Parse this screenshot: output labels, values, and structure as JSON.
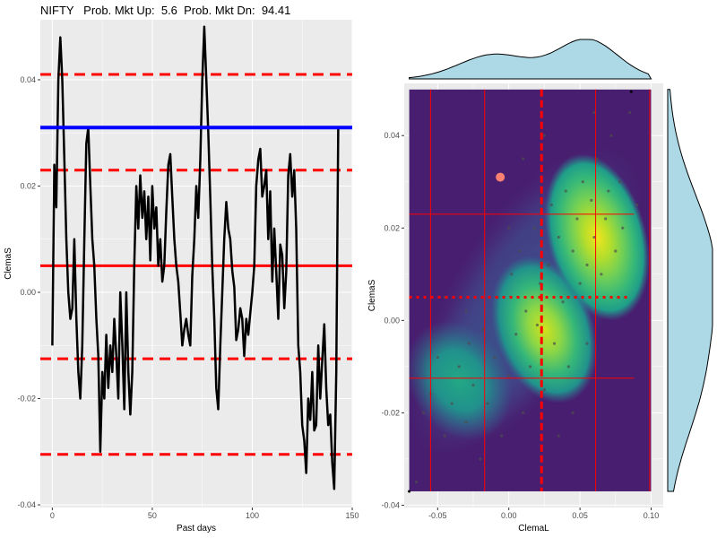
{
  "title": "NIFTY   Prob. Mkt Up:  5.6  Prob. Mkt Dn:  94.41",
  "colors": {
    "panel_bg": "#ebebeb",
    "grid": "#ffffff",
    "line": "#000000",
    "current_level": "#0000ff",
    "reference_lines": "#ff0000",
    "marginal_fill": "#add8e6",
    "current_point": "#fa8072"
  },
  "chart_data": [
    {
      "type": "line",
      "xlabel": "Past days",
      "ylabel": "ClemaS",
      "xlim": [
        -6,
        150
      ],
      "ylim": [
        -0.0405,
        0.0513
      ],
      "x_ticks": [
        0,
        50,
        100,
        150
      ],
      "y_ticks": [
        -0.04,
        -0.02,
        0.0,
        0.02,
        0.04
      ],
      "x_tick_labels": [
        "0",
        "50",
        "100",
        "150"
      ],
      "y_tick_labels": [
        "-0.04",
        "-0.02",
        "0.00",
        "0.02",
        "0.04"
      ],
      "series": [
        {
          "x": [
            0,
            1,
            2,
            3,
            4,
            5,
            6,
            7,
            8,
            9,
            10,
            11,
            12,
            13,
            14,
            15,
            16,
            17,
            18,
            19,
            20,
            21,
            22,
            23,
            24,
            25,
            26,
            27,
            28,
            29,
            30,
            31,
            32,
            33,
            34,
            35,
            36,
            37,
            38,
            39,
            40,
            41,
            42,
            43,
            44,
            45,
            46,
            47,
            48,
            49,
            50,
            51,
            52,
            53,
            54,
            55,
            56,
            57,
            58,
            59,
            60,
            61,
            62,
            63,
            64,
            65,
            66,
            67,
            68,
            69,
            70,
            71,
            72,
            73,
            74,
            75,
            76,
            77,
            78,
            79,
            80,
            81,
            82,
            83,
            84,
            85,
            86,
            87,
            88,
            89,
            90,
            91,
            92,
            93,
            94,
            95,
            96,
            97,
            98,
            99,
            100,
            101,
            102,
            103,
            104,
            105,
            106,
            107,
            108,
            109,
            110,
            111,
            112,
            113,
            114,
            115,
            116,
            117,
            118,
            119,
            120,
            121,
            122,
            123,
            124,
            125,
            126,
            127,
            128,
            129,
            130,
            131,
            132,
            133,
            134,
            135,
            136,
            137,
            138,
            139,
            140,
            141,
            142,
            143
          ],
          "y": [
            -0.01,
            0.024,
            0.016,
            0.04,
            0.048,
            0.04,
            0.025,
            0.01,
            0.0,
            -0.005,
            -0.003,
            0.01,
            -0.005,
            -0.015,
            -0.02,
            -0.01,
            0.01,
            0.028,
            0.031,
            0.02,
            0.01,
            0.005,
            -0.005,
            -0.012,
            -0.03,
            -0.015,
            -0.02,
            -0.008,
            -0.018,
            -0.01,
            -0.015,
            -0.005,
            -0.012,
            -0.02,
            0.0,
            -0.01,
            -0.022,
            0.0,
            -0.015,
            -0.023,
            -0.015,
            0.005,
            0.02,
            0.012,
            0.022,
            0.014,
            0.019,
            0.01,
            0.018,
            0.006,
            0.02,
            0.012,
            0.016,
            0.005,
            0.01,
            0.002,
            0.005,
            0.015,
            0.024,
            0.026,
            0.018,
            0.01,
            0.005,
            0.002,
            -0.004,
            -0.01,
            -0.007,
            -0.005,
            -0.008,
            -0.01,
            0.003,
            0.01,
            0.02,
            0.014,
            0.025,
            0.04,
            0.05,
            0.04,
            0.03,
            0.018,
            0.005,
            -0.005,
            -0.018,
            -0.022,
            -0.01,
            0.0,
            0.01,
            0.017,
            0.012,
            0.01,
            0.004,
            0.001,
            -0.009,
            -0.007,
            -0.003,
            -0.005,
            -0.012,
            -0.005,
            -0.008,
            -0.004,
            0.0,
            0.005,
            0.02,
            0.025,
            0.027,
            0.018,
            0.02,
            0.023,
            0.01,
            0.019,
            0.002,
            0.012,
            0.004,
            -0.005,
            0.009,
            0.007,
            -0.003,
            0.004,
            0.022,
            0.026,
            0.018,
            0.023,
            0.012,
            -0.01,
            -0.015,
            -0.025,
            -0.028,
            -0.034,
            -0.02,
            -0.024,
            -0.015,
            -0.026,
            -0.025,
            -0.01,
            -0.02,
            -0.013,
            -0.006,
            -0.018,
            -0.025,
            -0.023,
            -0.032,
            -0.037,
            -0.015,
            0.031
          ]
        }
      ],
      "h_lines": [
        {
          "y": 0.031,
          "style": "solid",
          "color": "blue"
        },
        {
          "y": 0.041,
          "style": "dashed",
          "color": "red"
        },
        {
          "y": 0.023,
          "style": "dashed",
          "color": "red"
        },
        {
          "y": 0.005,
          "style": "solid",
          "color": "red"
        },
        {
          "y": -0.0125,
          "style": "dashed",
          "color": "red"
        },
        {
          "y": -0.0305,
          "style": "dashed",
          "color": "red"
        }
      ]
    },
    {
      "type": "heatmap",
      "subtype": "2d-density-with-marginals",
      "xlabel": "ClemaL",
      "ylabel": "ClemaS",
      "xlim": [
        -0.0735,
        0.1085
      ],
      "ylim": [
        -0.0405,
        0.0513
      ],
      "x_ticks": [
        -0.05,
        0.0,
        0.05,
        0.1
      ],
      "y_ticks": [
        -0.04,
        -0.02,
        0.0,
        0.02,
        0.04
      ],
      "x_tick_labels": [
        "-0.05",
        "0.00",
        "0.05",
        "0.10"
      ],
      "y_tick_labels": [
        "-0.04",
        "-0.02",
        "0.00",
        "0.02",
        "0.04"
      ],
      "density_range": {
        "x": [
          -0.07,
          0.1
        ],
        "y": [
          -0.037,
          0.05
        ]
      },
      "density_peaks": [
        {
          "x": 0.062,
          "y": 0.018,
          "intensity": 1.0
        },
        {
          "x": 0.025,
          "y": -0.002,
          "intensity": 0.75
        },
        {
          "x": -0.035,
          "y": -0.013,
          "intensity": 0.45
        }
      ],
      "v_lines": [
        {
          "x": 0.023,
          "style": "dashed-thick",
          "color": "red"
        },
        {
          "x": -0.055,
          "style": "solid",
          "color": "red"
        },
        {
          "x": -0.017,
          "style": "solid",
          "color": "red"
        },
        {
          "x": 0.061,
          "style": "solid",
          "color": "red"
        },
        {
          "x": 0.099,
          "style": "solid",
          "color": "red"
        }
      ],
      "h_lines": [
        {
          "y": 0.023,
          "style": "solid",
          "color": "red"
        },
        {
          "y": 0.005,
          "style": "dotted",
          "color": "red"
        },
        {
          "y": -0.0125,
          "style": "solid",
          "color": "red"
        }
      ],
      "current_point": {
        "x": -0.006,
        "y": 0.031
      },
      "scatter_points": [
        [
          -0.06,
          -0.02
        ],
        [
          -0.055,
          -0.016
        ],
        [
          -0.05,
          -0.008
        ],
        [
          -0.045,
          -0.025
        ],
        [
          -0.04,
          -0.018
        ],
        [
          -0.035,
          -0.01
        ],
        [
          -0.03,
          -0.022
        ],
        [
          -0.028,
          -0.005
        ],
        [
          -0.025,
          -0.014
        ],
        [
          -0.02,
          -0.03
        ],
        [
          -0.018,
          -0.002
        ],
        [
          -0.015,
          -0.018
        ],
        [
          -0.01,
          -0.008
        ],
        [
          -0.008,
          0.005
        ],
        [
          -0.005,
          -0.025
        ],
        [
          0.0,
          -0.012
        ],
        [
          0.002,
          0.01
        ],
        [
          0.005,
          -0.003
        ],
        [
          0.008,
          0.015
        ],
        [
          0.01,
          -0.02
        ],
        [
          0.012,
          0.002
        ],
        [
          0.015,
          -0.01
        ],
        [
          0.018,
          0.02
        ],
        [
          0.02,
          -0.001
        ],
        [
          0.022,
          0.008
        ],
        [
          0.025,
          -0.015
        ],
        [
          0.028,
          0.012
        ],
        [
          0.03,
          0.025
        ],
        [
          0.032,
          -0.005
        ],
        [
          0.035,
          0.018
        ],
        [
          0.038,
          0.004
        ],
        [
          0.04,
          0.028
        ],
        [
          0.042,
          -0.01
        ],
        [
          0.045,
          0.015
        ],
        [
          0.048,
          0.022
        ],
        [
          0.05,
          0.008
        ],
        [
          0.052,
          0.03
        ],
        [
          0.055,
          0.012
        ],
        [
          0.058,
          0.026
        ],
        [
          0.06,
          0.018
        ],
        [
          0.062,
          0.035
        ],
        [
          0.065,
          0.01
        ],
        [
          0.068,
          0.022
        ],
        [
          0.07,
          0.028
        ],
        [
          0.072,
          0.04
        ],
        [
          0.075,
          0.015
        ],
        [
          0.078,
          0.03
        ],
        [
          0.08,
          0.02
        ],
        [
          0.085,
          0.045
        ],
        [
          0.09,
          0.025
        ],
        [
          -0.065,
          -0.035
        ],
        [
          -0.03,
          0.002
        ],
        [
          0.0,
          0.02
        ],
        [
          0.035,
          -0.025
        ],
        [
          0.045,
          -0.02
        ],
        [
          0.01,
          0.035
        ],
        [
          0.055,
          -0.005
        ],
        [
          -0.045,
          0.005
        ],
        [
          0.025,
          0.04
        ],
        [
          0.06,
          0.045
        ]
      ]
    }
  ]
}
